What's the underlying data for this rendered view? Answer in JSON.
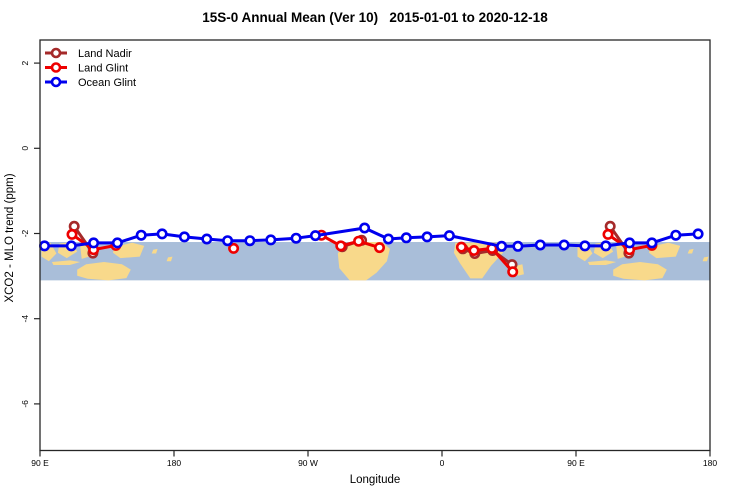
{
  "page": {
    "background": "#FFFFFF"
  },
  "chart_data": {
    "type": "line",
    "title": "15S-0 Annual Mean (Ver 10)   2015-01-01 to 2020-12-18",
    "xlabel": "Longitude",
    "ylabel": "XCO2 - MLO trend (ppm)",
    "grid": "off",
    "frame_color": "#262626",
    "x_axis": {
      "unit": "degrees along axis (wrapped longitude, 0 = 90E)",
      "range_deg": [
        0,
        450
      ],
      "ticks": [
        {
          "deg": 0,
          "label": "90 E"
        },
        {
          "deg": 90,
          "label": "180"
        },
        {
          "deg": 180,
          "label": "90 W"
        },
        {
          "deg": 270,
          "label": "0"
        },
        {
          "deg": 360,
          "label": "90 E"
        },
        {
          "deg": 450,
          "label": "180"
        }
      ]
    },
    "y_axis": {
      "unit": "ppm",
      "range": [
        -7.1,
        2.54
      ],
      "ticks": [
        2,
        0,
        -2,
        -4,
        -6
      ]
    },
    "legend": {
      "position": "top-left",
      "entries": [
        {
          "label": "Land Nadir",
          "color": "#A52A2A"
        },
        {
          "label": "Land Glint",
          "color": "#EE0000"
        },
        {
          "label": "Ocean Glint",
          "color": "#0000EE"
        }
      ]
    },
    "series": [
      {
        "name": "Land Nadir",
        "color": "#A52A2A",
        "segments": [
          [
            [
              23,
              -1.83
            ],
            [
              35.5,
              -2.46
            ]
          ],
          [
            [
              203,
              -2.31
            ],
            [
              216,
              -2.16
            ]
          ],
          [
            [
              284,
              -2.36
            ],
            [
              292,
              -2.47
            ],
            [
              304,
              -2.4
            ],
            [
              317,
              -2.73
            ]
          ],
          [
            [
              383,
              -1.83
            ],
            [
              395.5,
              -2.46
            ]
          ]
        ]
      },
      {
        "name": "Land Glint",
        "color": "#EE0000",
        "segments": [
          [
            [
              21.5,
              -2.02
            ],
            [
              36,
              -2.38
            ],
            [
              51,
              -2.28
            ]
          ],
          [
            [
              130,
              -2.35
            ]
          ],
          [
            [
              189,
              -2.04
            ],
            [
              202,
              -2.29
            ],
            [
              214,
              -2.18
            ],
            [
              228,
              -2.33
            ]
          ],
          [
            [
              283,
              -2.32
            ],
            [
              291.5,
              -2.4
            ],
            [
              303.5,
              -2.35
            ],
            [
              317.5,
              -2.9
            ]
          ],
          [
            [
              381.5,
              -2.02
            ],
            [
              396,
              -2.38
            ],
            [
              411,
              -2.28
            ]
          ]
        ]
      },
      {
        "name": "Ocean Glint",
        "color": "#0000EE",
        "segments": [
          [
            [
              3,
              -2.29
            ],
            [
              21,
              -2.29
            ],
            [
              36,
              -2.22
            ],
            [
              52,
              -2.22
            ],
            [
              68,
              -2.04
            ],
            [
              82,
              -2.01
            ],
            [
              97,
              -2.08
            ],
            [
              112,
              -2.13
            ],
            [
              126,
              -2.17
            ],
            [
              141,
              -2.17
            ],
            [
              155,
              -2.15
            ],
            [
              172,
              -2.11
            ],
            [
              185,
              -2.05
            ],
            [
              218,
              -1.87
            ],
            [
              234,
              -2.13
            ],
            [
              246,
              -2.1
            ],
            [
              260,
              -2.08
            ],
            [
              275,
              -2.05
            ],
            [
              310,
              -2.3
            ],
            [
              321,
              -2.3
            ],
            [
              336,
              -2.27
            ],
            [
              352,
              -2.27
            ],
            [
              366,
              -2.29
            ],
            [
              380,
              -2.29
            ],
            [
              396,
              -2.22
            ],
            [
              411,
              -2.22
            ],
            [
              427,
              -2.04
            ],
            [
              442,
              -2.01
            ]
          ]
        ]
      }
    ],
    "map_band": {
      "description": "world-map reference strip drawn across plot",
      "top_value": -2.2,
      "bottom_value": -3.1,
      "ocean_color": "#A9BED9",
      "land_color": "#F8D98B",
      "land_patches": [
        {
          "name": "sumatra",
          "pts": [
            [
              1,
              0.12
            ],
            [
              7,
              0.02
            ],
            [
              11,
              0.3
            ],
            [
              6,
              0.5
            ],
            [
              1,
              0.38
            ]
          ]
        },
        {
          "name": "java",
          "pts": [
            [
              8,
              0.52
            ],
            [
              20,
              0.48
            ],
            [
              27,
              0.52
            ],
            [
              20,
              0.6
            ],
            [
              9,
              0.6
            ]
          ]
        },
        {
          "name": "borneo",
          "pts": [
            [
              13,
              0.04
            ],
            [
              21,
              0.0
            ],
            [
              25,
              0.25
            ],
            [
              18,
              0.42
            ],
            [
              12,
              0.28
            ]
          ]
        },
        {
          "name": "sulawesi",
          "pts": [
            [
              27,
              0.1
            ],
            [
              31,
              0.08
            ],
            [
              33,
              0.38
            ],
            [
              28,
              0.44
            ]
          ]
        },
        {
          "name": "lesser-sunda",
          "pts": [
            [
              30,
              0.6
            ],
            [
              38,
              0.58
            ],
            [
              37,
              0.66
            ],
            [
              30,
              0.66
            ]
          ]
        },
        {
          "name": "new-guinea",
          "pts": [
            [
              50,
              0.12
            ],
            [
              62,
              0.02
            ],
            [
              70,
              0.1
            ],
            [
              67,
              0.38
            ],
            [
              54,
              0.42
            ],
            [
              49,
              0.28
            ]
          ]
        },
        {
          "name": "australia",
          "pts": [
            [
              25,
              0.72
            ],
            [
              31,
              0.58
            ],
            [
              43,
              0.52
            ],
            [
              55,
              0.58
            ],
            [
              61,
              0.72
            ],
            [
              58,
              0.94
            ],
            [
              46,
              1.0
            ],
            [
              32,
              0.96
            ],
            [
              25,
              0.88
            ]
          ]
        },
        {
          "name": "pacific-island-1",
          "pts": [
            [
              76,
              0.2
            ],
            [
              79,
              0.18
            ],
            [
              78,
              0.3
            ],
            [
              75,
              0.3
            ]
          ]
        },
        {
          "name": "pacific-island-2",
          "pts": [
            [
              86,
              0.4
            ],
            [
              89,
              0.38
            ],
            [
              88,
              0.5
            ],
            [
              85,
              0.5
            ]
          ]
        },
        {
          "name": "south-america",
          "pts": [
            [
              200,
              0.3
            ],
            [
              204,
              0.04
            ],
            [
              211,
              0.0
            ],
            [
              230,
              0.0
            ],
            [
              235,
              0.18
            ],
            [
              233,
              0.5
            ],
            [
              226,
              0.8
            ],
            [
              219,
              1.0
            ],
            [
              208,
              1.0
            ],
            [
              201,
              0.68
            ]
          ]
        },
        {
          "name": "africa",
          "pts": [
            [
              279,
              0.02
            ],
            [
              310,
              0.02
            ],
            [
              311,
              0.28
            ],
            [
              303,
              0.62
            ],
            [
              297,
              0.95
            ],
            [
              289,
              0.95
            ],
            [
              282,
              0.55
            ],
            [
              278,
              0.28
            ]
          ]
        },
        {
          "name": "madagascar",
          "pts": [
            [
              320,
              0.62
            ],
            [
              324,
              0.58
            ],
            [
              325,
              0.84
            ],
            [
              321,
              0.88
            ]
          ]
        },
        {
          "name": "sumatra-2",
          "pts": [
            [
              361,
              0.12
            ],
            [
              367,
              0.02
            ],
            [
              371,
              0.3
            ],
            [
              366,
              0.5
            ],
            [
              361,
              0.38
            ]
          ]
        },
        {
          "name": "java-2",
          "pts": [
            [
              368,
              0.52
            ],
            [
              380,
              0.48
            ],
            [
              387,
              0.52
            ],
            [
              380,
              0.6
            ],
            [
              369,
              0.6
            ]
          ]
        },
        {
          "name": "borneo-2",
          "pts": [
            [
              373,
              0.04
            ],
            [
              381,
              0.0
            ],
            [
              385,
              0.25
            ],
            [
              378,
              0.42
            ],
            [
              372,
              0.28
            ]
          ]
        },
        {
          "name": "sulawesi-2",
          "pts": [
            [
              387,
              0.1
            ],
            [
              391,
              0.08
            ],
            [
              393,
              0.38
            ],
            [
              388,
              0.44
            ]
          ]
        },
        {
          "name": "lesser-sunda-2",
          "pts": [
            [
              390,
              0.6
            ],
            [
              398,
              0.58
            ],
            [
              397,
              0.66
            ],
            [
              390,
              0.66
            ]
          ]
        },
        {
          "name": "new-guinea-2",
          "pts": [
            [
              410,
              0.12
            ],
            [
              422,
              0.02
            ],
            [
              430,
              0.1
            ],
            [
              427,
              0.38
            ],
            [
              414,
              0.42
            ],
            [
              409,
              0.28
            ]
          ]
        },
        {
          "name": "australia-2",
          "pts": [
            [
              385,
              0.72
            ],
            [
              391,
              0.58
            ],
            [
              403,
              0.52
            ],
            [
              415,
              0.58
            ],
            [
              421,
              0.72
            ],
            [
              418,
              0.94
            ],
            [
              406,
              1.0
            ],
            [
              392,
              0.96
            ],
            [
              385,
              0.88
            ]
          ]
        },
        {
          "name": "pacific-island-3",
          "pts": [
            [
              436,
              0.2
            ],
            [
              439,
              0.18
            ],
            [
              438,
              0.3
            ],
            [
              435,
              0.3
            ]
          ]
        },
        {
          "name": "pacific-island-4",
          "pts": [
            [
              446,
              0.4
            ],
            [
              449,
              0.38
            ],
            [
              448,
              0.5
            ],
            [
              445,
              0.5
            ]
          ]
        }
      ]
    }
  }
}
